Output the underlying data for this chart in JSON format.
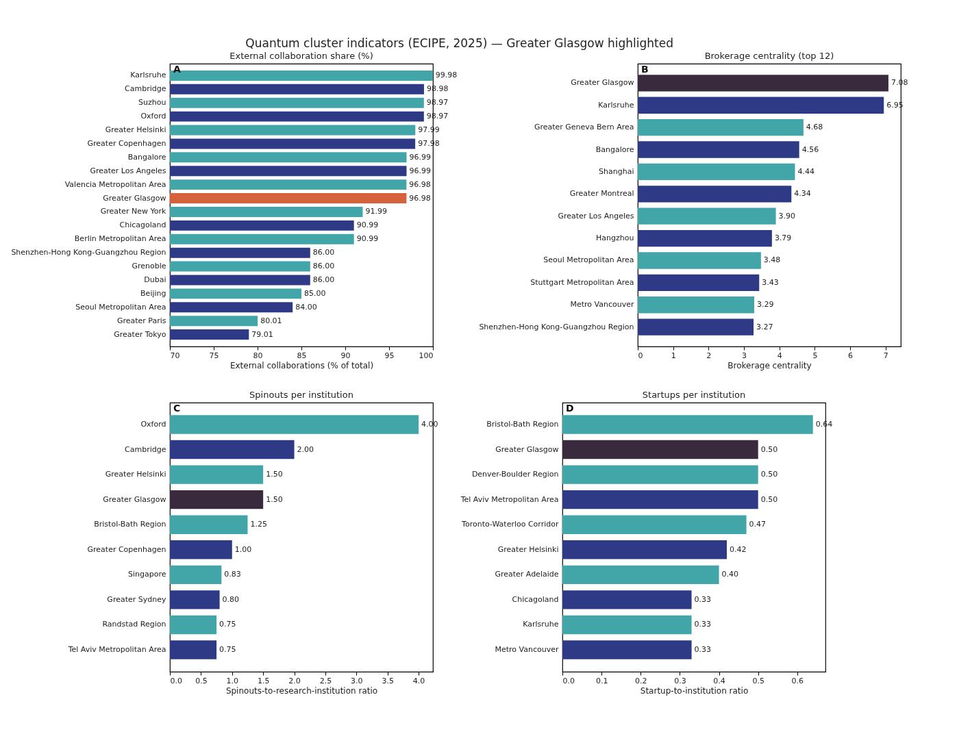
{
  "chart_data": [
    {
      "type": "bar",
      "orientation": "horizontal",
      "title": "Quantum cluster indicators (ECIPE, 2025) — Greater Glasgow highlighted",
      "subtitle": "External collaboration share (%)",
      "xlabel": "External collaborations (% of total)",
      "annotations": [
        "A"
      ],
      "categories": [
        "Karlsruhe",
        "Cambridge",
        "Suzhou",
        "Oxford",
        "Greater Helsinki",
        "Greater Copenhagen",
        "Bangalore",
        "Greater Los Angeles",
        "Valencia Metropolitan Area",
        "Greater Glasgow",
        "Greater New York",
        "Chicagoland",
        "Berlin Metropolitan Area",
        "Shenzhen-Hong Kong-Guangzhou Region",
        "Grenoble",
        "Dubai",
        "Beijing",
        "Seoul Metropolitan Area",
        "Greater Paris",
        "Greater Tokyo"
      ],
      "values": [
        99.98,
        98.98,
        98.97,
        98.97,
        97.99,
        97.98,
        96.99,
        96.99,
        96.98,
        96.98,
        91.99,
        90.99,
        90.99,
        86.0,
        86.0,
        86.0,
        85.0,
        84.0,
        80.01,
        79.01
      ],
      "colors": [
        "#42a5a8",
        "#2f3a86",
        "#42a5a8",
        "#2f3a86",
        "#42a5a8",
        "#2f3a86",
        "#42a5a8",
        "#2f3a86",
        "#42a5a8",
        "#d6623c",
        "#42a5a8",
        "#2f3a86",
        "#42a5a8",
        "#2f3a86",
        "#42a5a8",
        "#2f3a86",
        "#42a5a8",
        "#2f3a86",
        "#42a5a8",
        "#2f3a86"
      ],
      "xlim": [
        70,
        100
      ],
      "xticks": [
        70,
        75,
        80,
        85,
        90,
        95,
        100
      ],
      "value_labels": [
        "99.98",
        "98.98",
        "98.97",
        "98.97",
        "97.99",
        "97.98",
        "96.99",
        "96.99",
        "96.98",
        "96.98",
        "91.99",
        "90.99",
        "90.99",
        "86.00",
        "86.00",
        "86.00",
        "85.00",
        "84.00",
        "80.01",
        "79.01"
      ],
      "grid": false
    },
    {
      "type": "bar",
      "orientation": "horizontal",
      "title": "Brokerage centrality (top 12)",
      "xlabel": "Brokerage centrality",
      "annotations": [
        "B"
      ],
      "categories": [
        "Greater Glasgow",
        "Karlsruhe",
        "Greater Geneva Bern Area",
        "Bangalore",
        "Shanghai",
        "Greater Montreal",
        "Greater Los Angeles",
        "Hangzhou",
        "Seoul Metropolitan Area",
        "Stuttgart Metropolitan Area",
        "Metro Vancouver",
        "Shenzhen-Hong Kong-Guangzhou Region"
      ],
      "values": [
        7.08,
        6.95,
        4.68,
        4.56,
        4.44,
        4.34,
        3.9,
        3.79,
        3.48,
        3.43,
        3.29,
        3.27
      ],
      "colors": [
        "#3a2a3e",
        "#2f3a86",
        "#42a5a8",
        "#2f3a86",
        "#42a5a8",
        "#2f3a86",
        "#42a5a8",
        "#2f3a86",
        "#42a5a8",
        "#2f3a86",
        "#42a5a8",
        "#2f3a86"
      ],
      "xlim": [
        0,
        7.43
      ],
      "xticks": [
        0,
        1,
        2,
        3,
        4,
        5,
        6,
        7
      ],
      "value_labels": [
        "7.08",
        "6.95",
        "4.68",
        "4.56",
        "4.44",
        "4.34",
        "3.90",
        "3.79",
        "3.48",
        "3.43",
        "3.29",
        "3.27"
      ],
      "grid": false
    },
    {
      "type": "bar",
      "orientation": "horizontal",
      "title": "Spinouts per institution",
      "xlabel": "Spinouts-to-research-institution ratio",
      "annotations": [
        "C"
      ],
      "categories": [
        "Oxford",
        "Cambridge",
        "Greater Helsinki",
        "Greater Glasgow",
        "Bristol-Bath Region",
        "Greater Copenhagen",
        "Singapore",
        "Greater Sydney",
        "Randstad Region",
        "Tel Aviv Metropolitan Area"
      ],
      "values": [
        4.0,
        2.0,
        1.5,
        1.5,
        1.25,
        1.0,
        0.83,
        0.8,
        0.75,
        0.75
      ],
      "colors": [
        "#42a5a8",
        "#2f3a86",
        "#42a5a8",
        "#3a2a3e",
        "#42a5a8",
        "#2f3a86",
        "#42a5a8",
        "#2f3a86",
        "#42a5a8",
        "#2f3a86"
      ],
      "xlim": [
        0,
        4.23
      ],
      "xticks": [
        {
          "value": 0,
          "label": "0.0"
        },
        0.5,
        {
          "value": 1,
          "label": "1.0"
        },
        1.5,
        {
          "value": 2,
          "label": "2.0"
        },
        2.5,
        {
          "value": 3,
          "label": "3.0"
        },
        3.5,
        {
          "value": 4,
          "label": "4.0"
        }
      ],
      "value_labels": [
        "4.00",
        "2.00",
        "1.50",
        "1.50",
        "1.25",
        "1.00",
        "0.83",
        "0.80",
        "0.75",
        "0.75"
      ],
      "grid": false
    },
    {
      "type": "bar",
      "orientation": "horizontal",
      "title": "Startups per institution",
      "xlabel": "Startup-to-institution ratio",
      "annotations": [
        "D"
      ],
      "categories": [
        "Bristol-Bath Region",
        "Greater Glasgow",
        "Denver-Boulder Region",
        "Tel Aviv Metropolitan Area",
        "Toronto-Waterloo Corridor",
        "Greater Helsinki",
        "Greater Adelaide",
        "Chicagoland",
        "Karlsruhe",
        "Metro Vancouver"
      ],
      "values": [
        0.64,
        0.5,
        0.5,
        0.5,
        0.47,
        0.42,
        0.4,
        0.33,
        0.33,
        0.33
      ],
      "colors": [
        "#42a5a8",
        "#3a2a3e",
        "#42a5a8",
        "#2f3a86",
        "#42a5a8",
        "#2f3a86",
        "#42a5a8",
        "#2f3a86",
        "#42a5a8",
        "#2f3a86"
      ],
      "xlim": [
        0,
        0.672
      ],
      "xticks": [
        {
          "value": 0,
          "label": "0.0"
        },
        0.1,
        0.2,
        0.3,
        0.4,
        0.5,
        0.6
      ],
      "value_labels": [
        "0.64",
        "0.50",
        "0.50",
        "0.50",
        "0.47",
        "0.42",
        "0.40",
        "0.33",
        "0.33",
        "0.33"
      ],
      "grid": false
    }
  ]
}
